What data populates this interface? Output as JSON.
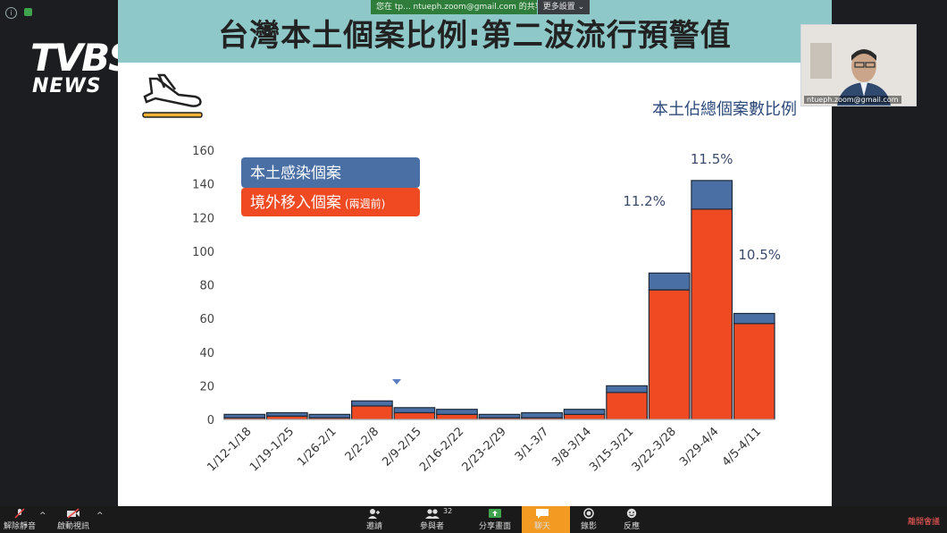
{
  "broadcast": {
    "logo_main": "TVBS",
    "logo_sub": "NEWS"
  },
  "share": {
    "banner_text": "您在 tp... ntueph.zoom@gmail.com 的共享",
    "menu_label": "更多設置 ⌄"
  },
  "slide": {
    "title": "台灣本土個案比例:第二波流行預警值",
    "subtitle": "本土佔總個案數比例"
  },
  "speaker": {
    "name_label": "ntueph.zoom@gmail.com"
  },
  "chart_data": {
    "type": "bar",
    "stacked": true,
    "categories": [
      "1/12-1/18",
      "1/19-1/25",
      "1/26-2/1",
      "2/2-2/8",
      "2/9-2/15",
      "2/16-2/22",
      "2/23-2/29",
      "3/1-3/7",
      "3/8-3/14",
      "3/15-3/21",
      "3/22-3/28",
      "3/29-4/4",
      "4/5-4/11"
    ],
    "series": [
      {
        "name": "境外移入個案",
        "name_note": "(兩週前)",
        "color": "#f04a22",
        "values": [
          1,
          2,
          1,
          8,
          4,
          3,
          1,
          1,
          3,
          16,
          77,
          125,
          57
        ]
      },
      {
        "name": "本土感染個案",
        "color": "#4a6fa5",
        "values": [
          2,
          2,
          2,
          3,
          3,
          3,
          2,
          3,
          3,
          4,
          10,
          17,
          6
        ]
      }
    ],
    "ylim": [
      0,
      160
    ],
    "yticks": [
      0,
      20,
      40,
      60,
      80,
      100,
      120,
      140,
      160
    ],
    "annotations": [
      {
        "category": "3/22-3/28",
        "text": "11.2%"
      },
      {
        "category": "3/29-4/4",
        "text": "11.5%"
      },
      {
        "category": "4/5-4/11",
        "text": "10.5%"
      }
    ],
    "legend_position": "top-left"
  },
  "toolbar": {
    "mute": "解除靜音",
    "video": "啟動視訊",
    "invite": "邀請",
    "participants": "參與者",
    "participants_count": "32",
    "share": "分享畫面",
    "chat": "聊天",
    "record": "錄影",
    "reactions": "反應",
    "end": "離開會議"
  }
}
